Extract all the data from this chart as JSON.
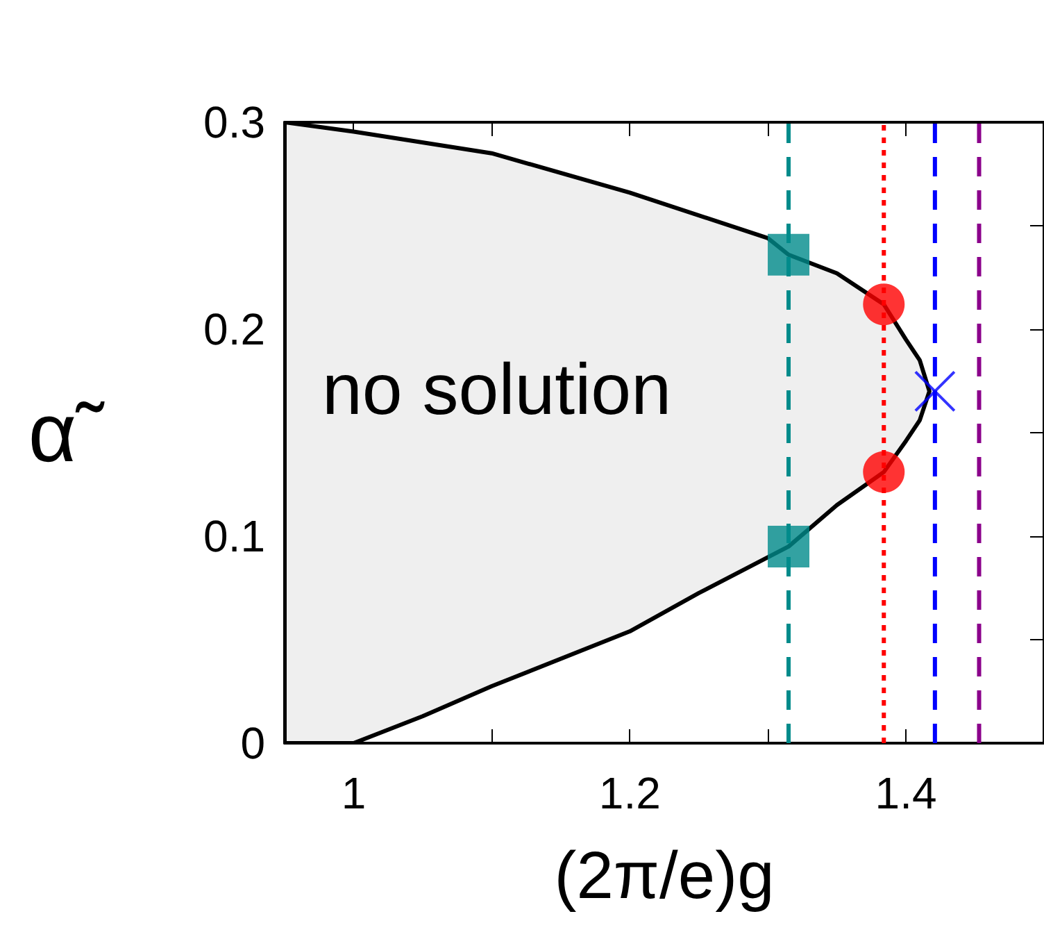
{
  "chart_data": {
    "type": "scatter",
    "xlabel": "(2π/e)g",
    "ylabel": "α̃",
    "annotations": [
      "no solution"
    ],
    "xlim": [
      0.95,
      1.5
    ],
    "xticks": [
      1,
      {
        "value": 1.1,
        "label": null
      },
      1.2,
      {
        "value": 1.3,
        "label": null
      },
      1.4
    ],
    "ylim": [
      0,
      0.3
    ],
    "yticks": [
      0,
      {
        "value": 0.05,
        "label": null
      },
      0.1,
      {
        "value": 0.15,
        "label": null
      },
      0.2,
      {
        "value": 0.25,
        "label": null
      },
      0.3
    ],
    "grid": false,
    "series": [
      {
        "type": "area",
        "color": "#efefef",
        "x": [
          0.95,
          1.0,
          1.1,
          1.2,
          1.3,
          1.315,
          1.35,
          1.384,
          1.4,
          1.41,
          1.417,
          1.41,
          1.4,
          1.384,
          1.35,
          1.315,
          1.25,
          1.2,
          1.1,
          1.05,
          1.0,
          0.95
        ],
        "values": [
          0.3,
          0.2955,
          0.285,
          0.266,
          0.244,
          0.236,
          0.227,
          0.212,
          0.195,
          0.185,
          0.17,
          0.156,
          0.146,
          0.131,
          0.115,
          0.095,
          0.0725,
          0.054,
          0.0275,
          0.013,
          0,
          0
        ]
      },
      {
        "color": "#008b8b",
        "marker": "square",
        "x": [
          1.315,
          1.315
        ],
        "values": [
          0.236,
          0.095
        ]
      },
      {
        "color": "#ff0000",
        "marker": "circle",
        "x": [
          1.384,
          1.384
        ],
        "values": [
          0.212,
          0.131
        ]
      },
      {
        "color": "#0000ff",
        "marker": "cross",
        "x": [
          1.421
        ],
        "values": [
          0.17
        ]
      }
    ],
    "ref_lines": [
      {
        "axis": "x",
        "value": 1.315,
        "color": "#008b8b",
        "line_style": "dashed"
      },
      {
        "axis": "x",
        "value": 1.384,
        "color": "#ff0000",
        "line_style": "dotted"
      },
      {
        "axis": "x",
        "value": 1.421,
        "color": "#0000ff",
        "line_style": "dashed"
      },
      {
        "axis": "x",
        "value": 1.453,
        "color": "#8b008b",
        "line_style": "dashed"
      }
    ]
  }
}
